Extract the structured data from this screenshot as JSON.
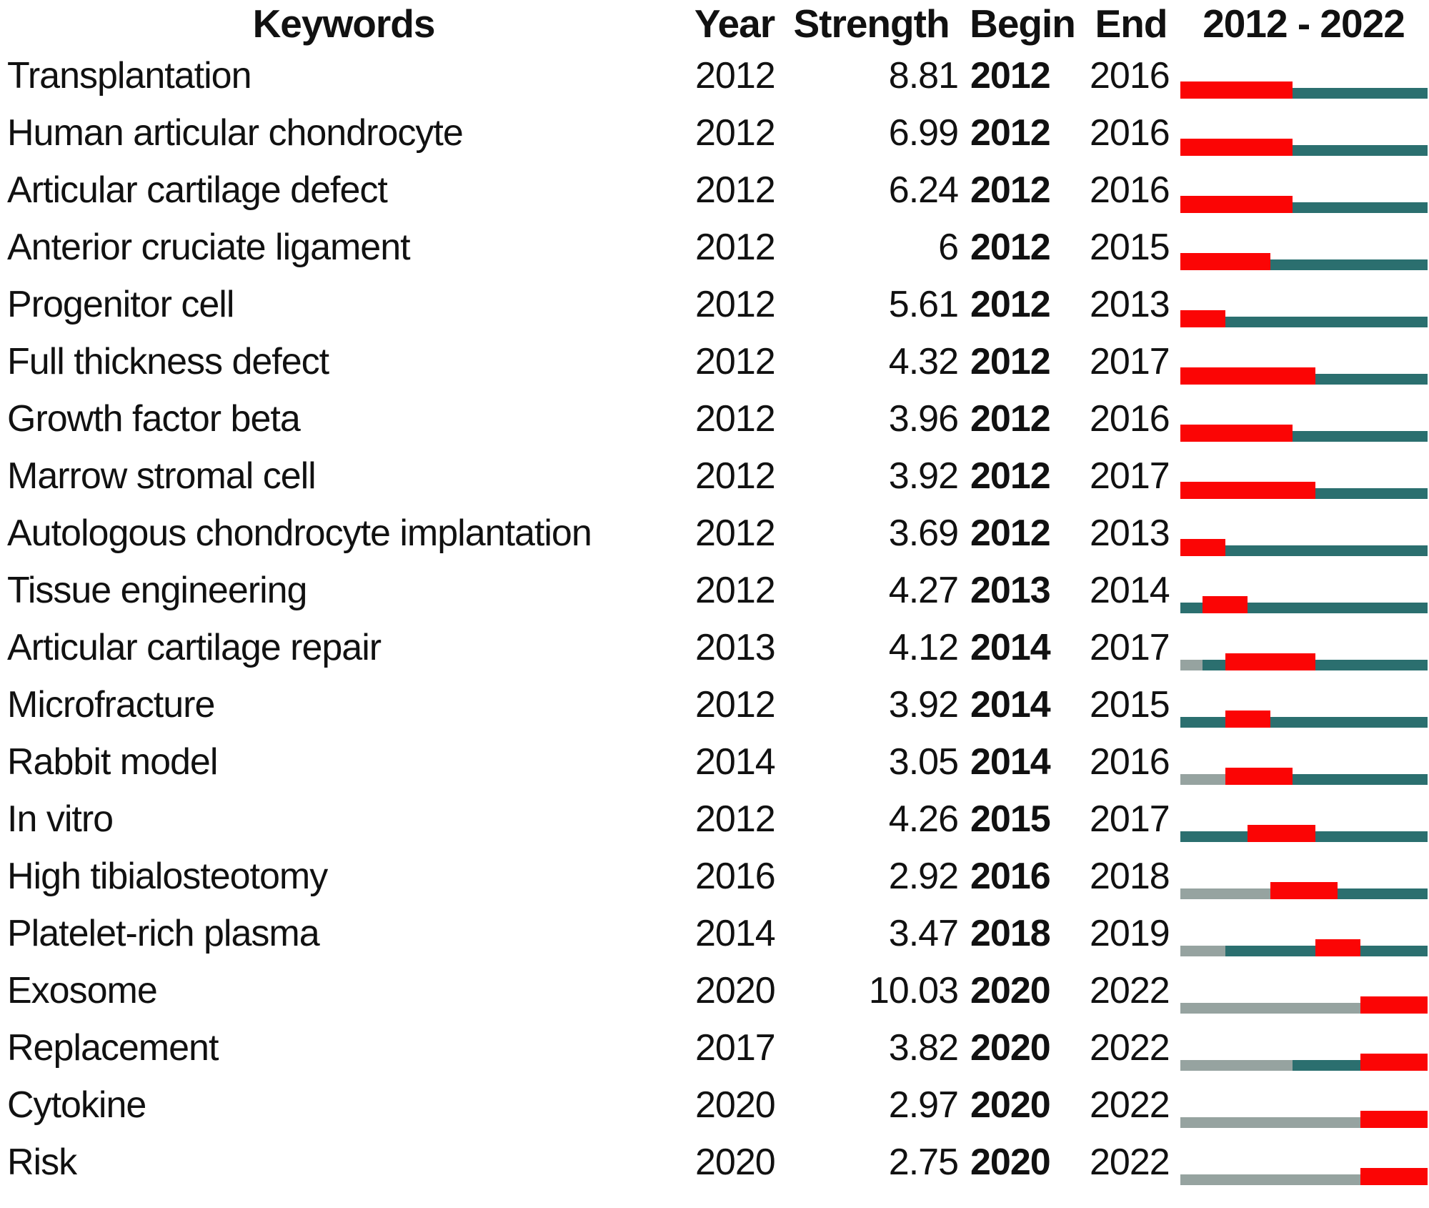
{
  "header": {
    "keywords": "Keywords",
    "year": "Year",
    "strength": "Strength",
    "begin": "Begin",
    "end": "End",
    "timeline": "2012 - 2022"
  },
  "timeline": {
    "start": 2012,
    "end": 2022
  },
  "colors": {
    "burst": "#fb0505",
    "active": "#2b6f6f",
    "inactive": "#96a3a0"
  },
  "rows": [
    {
      "keyword": "Transplantation",
      "year": "2012",
      "strength": "8.81",
      "begin": "2012",
      "end": "2016"
    },
    {
      "keyword": "Human articular chondrocyte",
      "year": "2012",
      "strength": "6.99",
      "begin": "2012",
      "end": "2016"
    },
    {
      "keyword": "Articular cartilage defect",
      "year": "2012",
      "strength": "6.24",
      "begin": "2012",
      "end": "2016"
    },
    {
      "keyword": "Anterior cruciate ligament",
      "year": "2012",
      "strength": "6",
      "begin": "2012",
      "end": "2015"
    },
    {
      "keyword": "Progenitor cell",
      "year": "2012",
      "strength": "5.61",
      "begin": "2012",
      "end": "2013"
    },
    {
      "keyword": "Full thickness defect",
      "year": "2012",
      "strength": "4.32",
      "begin": "2012",
      "end": "2017"
    },
    {
      "keyword": "Growth factor beta",
      "year": "2012",
      "strength": "3.96",
      "begin": "2012",
      "end": "2016"
    },
    {
      "keyword": "Marrow stromal cell",
      "year": "2012",
      "strength": "3.92",
      "begin": "2012",
      "end": "2017"
    },
    {
      "keyword": "Autologous chondrocyte implantation",
      "year": "2012",
      "strength": "3.69",
      "begin": "2012",
      "end": "2013"
    },
    {
      "keyword": "Tissue engineering",
      "year": "2012",
      "strength": "4.27",
      "begin": "2013",
      "end": "2014"
    },
    {
      "keyword": "Articular cartilage repair",
      "year": "2013",
      "strength": "4.12",
      "begin": "2014",
      "end": "2017"
    },
    {
      "keyword": "Microfracture",
      "year": "2012",
      "strength": "3.92",
      "begin": "2014",
      "end": "2015"
    },
    {
      "keyword": "Rabbit model",
      "year": "2014",
      "strength": "3.05",
      "begin": "2014",
      "end": "2016"
    },
    {
      "keyword": "In vitro",
      "year": "2012",
      "strength": "4.26",
      "begin": "2015",
      "end": "2017"
    },
    {
      "keyword": "High tibialosteotomy",
      "year": "2016",
      "strength": "2.92",
      "begin": "2016",
      "end": "2018"
    },
    {
      "keyword": "Platelet-rich plasma",
      "year": "2014",
      "strength": "3.47",
      "begin": "2018",
      "end": "2019"
    },
    {
      "keyword": "Exosome",
      "year": "2020",
      "strength": "10.03",
      "begin": "2020",
      "end": "2022"
    },
    {
      "keyword": "Replacement",
      "year": "2017",
      "strength": "3.82",
      "begin": "2020",
      "end": "2022"
    },
    {
      "keyword": "Cytokine",
      "year": "2020",
      "strength": "2.97",
      "begin": "2020",
      "end": "2022"
    },
    {
      "keyword": "Risk",
      "year": "2020",
      "strength": "2.75",
      "begin": "2020",
      "end": "2022"
    }
  ],
  "chart_data": {
    "type": "table",
    "columns": [
      "Keywords",
      "Year",
      "Strength",
      "Begin",
      "End",
      "2012 - 2022"
    ],
    "timeline_range": [
      2012,
      2022
    ],
    "bar_encoding": {
      "gray_inactive": "years from 2012 up to the keyword's first Year",
      "teal_active": "years from Year to 2022 that are not in the burst period",
      "red_burst": "years from Begin to End inclusive"
    },
    "rows": [
      {
        "keyword": "Transplantation",
        "year": 2012,
        "strength": 8.81,
        "burst_begin": 2012,
        "burst_end": 2016
      },
      {
        "keyword": "Human articular chondrocyte",
        "year": 2012,
        "strength": 6.99,
        "burst_begin": 2012,
        "burst_end": 2016
      },
      {
        "keyword": "Articular cartilage defect",
        "year": 2012,
        "strength": 6.24,
        "burst_begin": 2012,
        "burst_end": 2016
      },
      {
        "keyword": "Anterior cruciate ligament",
        "year": 2012,
        "strength": 6,
        "burst_begin": 2012,
        "burst_end": 2015
      },
      {
        "keyword": "Progenitor cell",
        "year": 2012,
        "strength": 5.61,
        "burst_begin": 2012,
        "burst_end": 2013
      },
      {
        "keyword": "Full thickness defect",
        "year": 2012,
        "strength": 4.32,
        "burst_begin": 2012,
        "burst_end": 2017
      },
      {
        "keyword": "Growth factor beta",
        "year": 2012,
        "strength": 3.96,
        "burst_begin": 2012,
        "burst_end": 2016
      },
      {
        "keyword": "Marrow stromal cell",
        "year": 2012,
        "strength": 3.92,
        "burst_begin": 2012,
        "burst_end": 2017
      },
      {
        "keyword": "Autologous chondrocyte implantation",
        "year": 2012,
        "strength": 3.69,
        "burst_begin": 2012,
        "burst_end": 2013
      },
      {
        "keyword": "Tissue engineering",
        "year": 2012,
        "strength": 4.27,
        "burst_begin": 2013,
        "burst_end": 2014
      },
      {
        "keyword": "Articular cartilage repair",
        "year": 2013,
        "strength": 4.12,
        "burst_begin": 2014,
        "burst_end": 2017
      },
      {
        "keyword": "Microfracture",
        "year": 2012,
        "strength": 3.92,
        "burst_begin": 2014,
        "burst_end": 2015
      },
      {
        "keyword": "Rabbit model",
        "year": 2014,
        "strength": 3.05,
        "burst_begin": 2014,
        "burst_end": 2016
      },
      {
        "keyword": "In vitro",
        "year": 2012,
        "strength": 4.26,
        "burst_begin": 2015,
        "burst_end": 2017
      },
      {
        "keyword": "High tibialosteotomy",
        "year": 2016,
        "strength": 2.92,
        "burst_begin": 2016,
        "burst_end": 2018
      },
      {
        "keyword": "Platelet-rich plasma",
        "year": 2014,
        "strength": 3.47,
        "burst_begin": 2018,
        "burst_end": 2019
      },
      {
        "keyword": "Exosome",
        "year": 2020,
        "strength": 10.03,
        "burst_begin": 2020,
        "burst_end": 2022
      },
      {
        "keyword": "Replacement",
        "year": 2017,
        "strength": 3.82,
        "burst_begin": 2020,
        "burst_end": 2022
      },
      {
        "keyword": "Cytokine",
        "year": 2020,
        "strength": 2.97,
        "burst_begin": 2020,
        "burst_end": 2022
      },
      {
        "keyword": "Risk",
        "year": 2020,
        "strength": 2.75,
        "burst_begin": 2020,
        "burst_end": 2022
      }
    ]
  }
}
